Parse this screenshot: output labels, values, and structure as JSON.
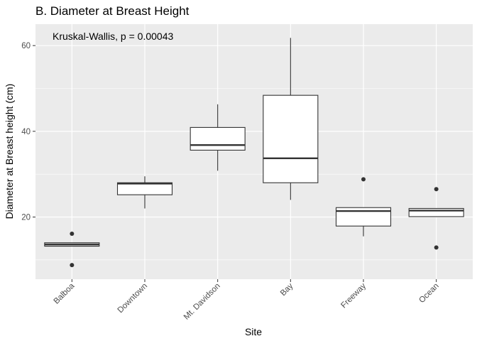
{
  "chart_data": {
    "type": "boxplot",
    "title": "B. Diameter at Breast Height",
    "xlabel": "Site",
    "ylabel": "Diameter at Breast height (cm)",
    "annotation": "Kruskal-Wallis, p = 0.00043",
    "ylim": [
      5.5,
      65
    ],
    "yticks": [
      20,
      40,
      60
    ],
    "grid": true,
    "categories": [
      "Balboa",
      "Downtown",
      "Mt. Davidson",
      "Bay",
      "Freeway",
      "Ocean"
    ],
    "boxes": [
      {
        "category": "Balboa",
        "whisker_low": 13.2,
        "q1": 13.2,
        "median": 13.6,
        "q3": 14.0,
        "whisker_high": 14.0,
        "outliers": [
          16.1,
          8.8
        ]
      },
      {
        "category": "Downtown",
        "whisker_low": 22.0,
        "q1": 25.2,
        "median": 27.8,
        "q3": 28.0,
        "whisker_high": 29.5,
        "outliers": []
      },
      {
        "category": "Mt. Davidson",
        "whisker_low": 30.8,
        "q1": 35.6,
        "median": 36.8,
        "q3": 40.9,
        "whisker_high": 46.3,
        "outliers": []
      },
      {
        "category": "Bay",
        "whisker_low": 24.0,
        "q1": 28.0,
        "median": 33.7,
        "q3": 48.4,
        "whisker_high": 61.8,
        "outliers": []
      },
      {
        "category": "Freeway",
        "whisker_low": 15.5,
        "q1": 17.9,
        "median": 21.4,
        "q3": 22.2,
        "whisker_high": 22.2,
        "outliers": [
          28.8
        ]
      },
      {
        "category": "Ocean",
        "whisker_low": 20.1,
        "q1": 20.1,
        "median": 21.5,
        "q3": 22.0,
        "whisker_high": 22.0,
        "outliers": [
          26.5,
          12.9
        ]
      }
    ]
  }
}
